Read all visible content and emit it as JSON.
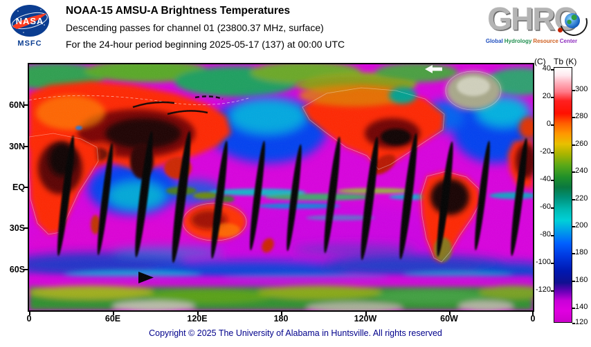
{
  "header": {
    "nasa_label": "NASA",
    "msfc_label": "MSFC",
    "title": "NOAA-15 AMSU-A Brightness Temperatures",
    "line2": "Descending passes for channel 01 (23800.37 MHz, surface)",
    "line3": "For the 24-hour period beginning 2025-05-17 (137) at 00:00 UTC",
    "ghrc": {
      "letters": [
        "G",
        "H",
        "R",
        "C"
      ],
      "subtitle_words": [
        "Global",
        "Hydrology",
        "Resource",
        "Center"
      ]
    }
  },
  "footer": {
    "copyright": "Copyright © 2025 The University of Alabama in Huntsville. All rights reserved"
  },
  "chart_data": {
    "type": "heatmap",
    "title": "NOAA-15 AMSU-A Brightness Temperatures",
    "subtitle": "Descending passes for channel 01 (23800.37 MHz, surface)",
    "period": "24-hour period beginning 2025-05-17 (137) at 00:00 UTC",
    "projection": "equirectangular world map, Pacific-centered",
    "x_axis": {
      "ticks": [
        "0",
        "60E",
        "120E",
        "180",
        "120W",
        "60W",
        "0"
      ]
    },
    "y_axis": {
      "ticks": [
        "60N",
        "30N",
        "EQ",
        "30S",
        "60S"
      ]
    },
    "colorbar": {
      "header_c": "(C)",
      "header_k": "Tb (K)",
      "celsius_ticks": [
        "40",
        "20",
        "0",
        "-20",
        "-40",
        "-60",
        "-80",
        "-100",
        "-120"
      ],
      "kelvin_ticks": [
        "300",
        "280",
        "260",
        "240",
        "220",
        "200",
        "180",
        "160",
        "140",
        "120"
      ],
      "kelvin_range": [
        120,
        313
      ],
      "gradient": [
        {
          "frac": 0.0,
          "color": "#ffffff"
        },
        {
          "frac": 0.03,
          "color": "#ffe8ee"
        },
        {
          "frac": 0.06,
          "color": "#ffb0bc"
        },
        {
          "frac": 0.095,
          "color": "#ff7a88"
        },
        {
          "frac": 0.13,
          "color": "#ff2020"
        },
        {
          "frac": 0.18,
          "color": "#ff1000"
        },
        {
          "frac": 0.22,
          "color": "#ff6000"
        },
        {
          "frac": 0.26,
          "color": "#ff9800"
        },
        {
          "frac": 0.3,
          "color": "#e8c000"
        },
        {
          "frac": 0.34,
          "color": "#a8b400"
        },
        {
          "frac": 0.385,
          "color": "#58a818"
        },
        {
          "frac": 0.43,
          "color": "#20902a"
        },
        {
          "frac": 0.47,
          "color": "#0a7840"
        },
        {
          "frac": 0.51,
          "color": "#009078"
        },
        {
          "frac": 0.555,
          "color": "#00b8b0"
        },
        {
          "frac": 0.6,
          "color": "#00d0d8"
        },
        {
          "frac": 0.64,
          "color": "#00a0e8"
        },
        {
          "frac": 0.69,
          "color": "#0060ff"
        },
        {
          "frac": 0.74,
          "color": "#0038e0"
        },
        {
          "frac": 0.8,
          "color": "#0018b0"
        },
        {
          "frac": 0.845,
          "color": "#101090"
        },
        {
          "frac": 0.88,
          "color": "#6a00b8"
        },
        {
          "frac": 0.915,
          "color": "#c800d8"
        },
        {
          "frac": 0.955,
          "color": "#e000e0"
        },
        {
          "frac": 1.0,
          "color": "#cc00cc"
        }
      ]
    },
    "features": {
      "ocean_color": "#d800dd",
      "hot_land_color": "#ff2800",
      "data_gap_color": "#000000",
      "num_swath_gaps": 13,
      "swath_gap_note": "black diagonal lens-shaped stripes = gaps between descending satellite swaths"
    }
  }
}
